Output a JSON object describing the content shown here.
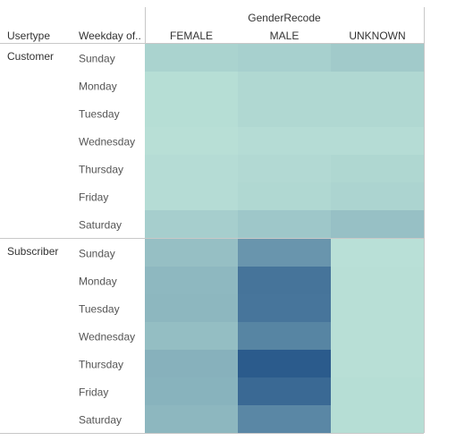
{
  "chart_data": {
    "type": "heatmap",
    "column_header_title": "GenderRecode",
    "row_header_titles": [
      "Usertype",
      "Weekday of.."
    ],
    "columns": [
      "FEMALE",
      "MALE",
      "UNKNOWN"
    ],
    "groups": [
      {
        "name": "Customer",
        "rows": [
          "Sunday",
          "Monday",
          "Tuesday",
          "Wednesday",
          "Thursday",
          "Friday",
          "Saturday"
        ],
        "values": [
          [
            0.14,
            0.16,
            0.2
          ],
          [
            0.06,
            0.1,
            0.1
          ],
          [
            0.06,
            0.1,
            0.1
          ],
          [
            0.05,
            0.07,
            0.07
          ],
          [
            0.07,
            0.09,
            0.11
          ],
          [
            0.07,
            0.1,
            0.13
          ],
          [
            0.17,
            0.22,
            0.27
          ]
        ]
      },
      {
        "name": "Subscriber",
        "rows": [
          "Sunday",
          "Monday",
          "Tuesday",
          "Wednesday",
          "Thursday",
          "Friday",
          "Saturday"
        ],
        "values": [
          [
            0.28,
            0.58,
            0.04
          ],
          [
            0.33,
            0.82,
            0.05
          ],
          [
            0.34,
            0.81,
            0.05
          ],
          [
            0.29,
            0.7,
            0.05
          ],
          [
            0.38,
            1.0,
            0.05
          ],
          [
            0.37,
            0.9,
            0.06
          ],
          [
            0.34,
            0.68,
            0.06
          ]
        ]
      }
    ],
    "color_scale": {
      "min": 0,
      "max": 1,
      "low_color": "#bfe6da",
      "high_color": "#2b5b8c"
    }
  }
}
